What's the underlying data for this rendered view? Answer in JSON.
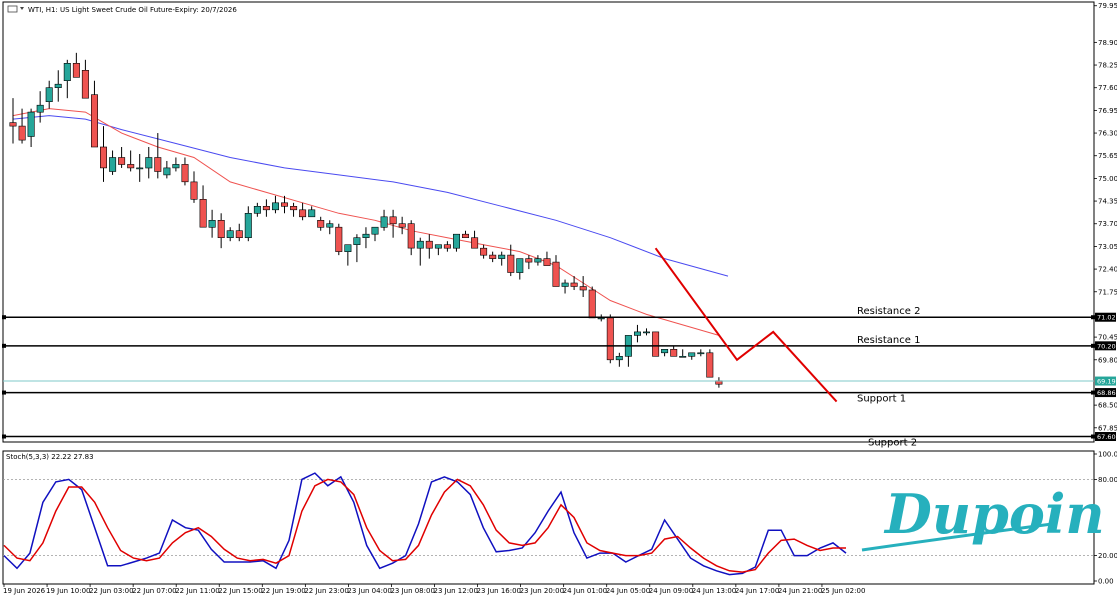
{
  "header": {
    "main_title": "WTI, H1:  US Light Sweet Crude Oil Future-Expiry: 20/7/2026",
    "osc_title": "Stoch(5,3,3) 22.22 27.83"
  },
  "brand": {
    "logo_text": "Dupoin",
    "color": "#26b0bd"
  },
  "colors": {
    "bull": "#26a69a",
    "bear": "#ef5350",
    "ma_fast": "#ef5350",
    "ma_slow": "#4a4af0",
    "trend": "#e00000",
    "stoch_k": "#1010c0",
    "stoch_d": "#e00000",
    "last_price_line": "#7fc8c8"
  },
  "chart_data": [
    {
      "type": "candlestick",
      "price_axis": [
        "79.95",
        "78.90",
        "78.25",
        "77.60",
        "76.95",
        "76.30",
        "75.65",
        "75.00",
        "74.35",
        "73.70",
        "73.05",
        "72.40",
        "71.75",
        "70.45",
        "69.80",
        "68.50",
        "67.85"
      ],
      "ylim": [
        67.5,
        80.0
      ],
      "time_axis": [
        "19 Jun 2026",
        "19 Jun 10:00",
        "22 Jun 03:00",
        "22 Jun 07:00",
        "22 Jun 11:00",
        "22 Jun 15:00",
        "22 Jun 19:00",
        "22 Jun 23:00",
        "23 Jun 04:00",
        "23 Jun 08:00",
        "23 Jun 12:00",
        "23 Jun 16:00",
        "23 Jun 20:00",
        "24 Jun 01:00",
        "24 Jun 05:00",
        "24 Jun 09:00",
        "24 Jun 13:00",
        "24 Jun 17:00",
        "24 Jun 21:00",
        "25 Jun 02:00"
      ],
      "candles": [
        [
          76.6,
          77.3,
          76.0,
          76.5
        ],
        [
          76.5,
          77.0,
          76.0,
          76.1
        ],
        [
          76.2,
          77.0,
          75.9,
          76.9
        ],
        [
          76.9,
          77.5,
          76.6,
          77.1
        ],
        [
          77.2,
          77.8,
          77.0,
          77.6
        ],
        [
          77.6,
          78.1,
          77.2,
          77.7
        ],
        [
          77.8,
          78.4,
          77.3,
          78.3
        ],
        [
          78.3,
          78.6,
          77.9,
          77.9
        ],
        [
          78.1,
          78.4,
          77.4,
          77.3
        ],
        [
          77.4,
          77.8,
          76.0,
          75.9
        ],
        [
          75.9,
          76.5,
          74.9,
          75.3
        ],
        [
          75.2,
          75.8,
          75.1,
          75.6
        ],
        [
          75.6,
          75.9,
          75.3,
          75.4
        ],
        [
          75.4,
          75.8,
          75.2,
          75.3
        ],
        [
          75.3,
          75.7,
          74.9,
          75.3
        ],
        [
          75.3,
          75.9,
          75.0,
          75.6
        ],
        [
          75.6,
          76.3,
          75.0,
          75.2
        ],
        [
          75.1,
          75.5,
          75.0,
          75.3
        ],
        [
          75.3,
          75.6,
          75.2,
          75.4
        ],
        [
          75.4,
          75.6,
          74.8,
          74.9
        ],
        [
          74.9,
          75.2,
          74.3,
          74.4
        ],
        [
          74.4,
          74.8,
          73.6,
          73.6
        ],
        [
          73.6,
          74.1,
          73.3,
          73.8
        ],
        [
          73.8,
          74.0,
          73.0,
          73.3
        ],
        [
          73.3,
          73.6,
          73.2,
          73.5
        ],
        [
          73.5,
          73.7,
          73.2,
          73.3
        ],
        [
          73.3,
          74.2,
          73.2,
          74.0
        ],
        [
          74.0,
          74.3,
          73.9,
          74.2
        ],
        [
          74.2,
          74.4,
          73.9,
          74.1
        ],
        [
          74.1,
          74.5,
          74.0,
          74.3
        ],
        [
          74.3,
          74.5,
          74.0,
          74.2
        ],
        [
          74.2,
          74.3,
          73.9,
          74.1
        ],
        [
          74.1,
          74.3,
          73.8,
          73.9
        ],
        [
          73.9,
          74.2,
          74.0,
          74.1
        ],
        [
          73.8,
          73.9,
          73.5,
          73.6
        ],
        [
          73.6,
          73.8,
          73.4,
          73.7
        ],
        [
          73.6,
          73.7,
          72.8,
          72.9
        ],
        [
          72.9,
          73.1,
          72.5,
          73.1
        ],
        [
          73.1,
          73.4,
          72.6,
          73.3
        ],
        [
          73.3,
          73.6,
          73.0,
          73.4
        ],
        [
          73.4,
          73.6,
          73.2,
          73.6
        ],
        [
          73.6,
          74.1,
          73.5,
          73.9
        ],
        [
          73.9,
          74.1,
          73.3,
          73.7
        ],
        [
          73.7,
          73.9,
          73.4,
          73.6
        ],
        [
          73.7,
          73.8,
          72.8,
          73.0
        ],
        [
          73.0,
          73.3,
          72.5,
          73.2
        ],
        [
          73.2,
          73.4,
          72.7,
          73.0
        ],
        [
          73.0,
          73.1,
          72.8,
          73.1
        ],
        [
          73.1,
          73.2,
          72.9,
          73.0
        ],
        [
          73.0,
          73.4,
          72.9,
          73.4
        ],
        [
          73.4,
          73.5,
          73.3,
          73.3
        ],
        [
          73.3,
          73.5,
          73.0,
          73.0
        ],
        [
          73.0,
          73.1,
          72.7,
          72.8
        ],
        [
          72.8,
          72.9,
          72.6,
          72.7
        ],
        [
          72.7,
          72.9,
          72.5,
          72.8
        ],
        [
          72.8,
          73.1,
          72.2,
          72.3
        ],
        [
          72.3,
          72.6,
          72.1,
          72.7
        ],
        [
          72.7,
          72.8,
          72.4,
          72.6
        ],
        [
          72.6,
          72.8,
          72.5,
          72.7
        ],
        [
          72.7,
          72.9,
          72.6,
          72.5
        ],
        [
          72.6,
          72.8,
          71.9,
          71.9
        ],
        [
          71.9,
          72.1,
          71.7,
          72.0
        ],
        [
          72.0,
          72.2,
          71.8,
          71.9
        ],
        [
          71.9,
          72.2,
          71.6,
          71.8
        ],
        [
          71.8,
          71.9,
          71.0,
          71.0
        ],
        [
          71.0,
          71.1,
          70.9,
          71.0
        ],
        [
          71.0,
          71.1,
          69.7,
          69.8
        ],
        [
          69.8,
          70.0,
          69.6,
          69.9
        ],
        [
          69.9,
          70.5,
          69.6,
          70.5
        ],
        [
          70.5,
          70.8,
          70.3,
          70.6
        ],
        [
          70.6,
          70.7,
          70.5,
          70.6
        ],
        [
          70.6,
          70.6,
          69.9,
          69.9
        ],
        [
          70.0,
          70.1,
          69.9,
          70.1
        ],
        [
          70.1,
          70.2,
          69.9,
          69.9
        ],
        [
          69.9,
          70.1,
          69.9,
          69.9
        ],
        [
          69.9,
          70.0,
          69.8,
          70.0
        ],
        [
          70.0,
          70.1,
          69.9,
          70.0
        ],
        [
          70.0,
          70.1,
          69.3,
          69.3
        ],
        [
          69.2,
          69.3,
          69.0,
          69.1
        ]
      ],
      "ma_fast": [
        [
          0,
          76.8
        ],
        [
          4,
          77.0
        ],
        [
          8,
          76.9
        ],
        [
          12,
          76.3
        ],
        [
          16,
          75.9
        ],
        [
          20,
          75.6
        ],
        [
          24,
          74.9
        ],
        [
          28,
          74.6
        ],
        [
          32,
          74.3
        ],
        [
          36,
          74.0
        ],
        [
          40,
          73.8
        ],
        [
          44,
          73.5
        ],
        [
          48,
          73.3
        ],
        [
          52,
          73.1
        ],
        [
          56,
          72.9
        ],
        [
          60,
          72.5
        ],
        [
          63,
          72.0
        ],
        [
          66,
          71.5
        ],
        [
          70,
          71.1
        ],
        [
          74,
          70.8
        ],
        [
          78,
          70.5
        ]
      ],
      "ma_slow": [
        [
          0,
          76.7
        ],
        [
          4,
          76.8
        ],
        [
          8,
          76.7
        ],
        [
          12,
          76.4
        ],
        [
          18,
          76.0
        ],
        [
          24,
          75.6
        ],
        [
          30,
          75.3
        ],
        [
          36,
          75.1
        ],
        [
          42,
          74.9
        ],
        [
          48,
          74.6
        ],
        [
          54,
          74.2
        ],
        [
          60,
          73.8
        ],
        [
          66,
          73.3
        ],
        [
          72,
          72.7
        ],
        [
          79,
          72.2
        ]
      ],
      "trendline": [
        [
          71,
          73.0
        ],
        [
          80,
          69.8
        ],
        [
          84,
          70.6
        ],
        [
          91,
          68.6
        ]
      ],
      "levels": [
        {
          "label": "Resistance 2",
          "price_tag": "71.02",
          "value": 71.02
        },
        {
          "label": "Resistance 1",
          "price_tag": "70.20",
          "value": 70.2
        },
        {
          "label": "",
          "price_tag": "69.19",
          "value": 69.19
        },
        {
          "label": "Support 1",
          "price_tag": "68.86",
          "value": 68.86
        },
        {
          "label": "Support 2",
          "price_tag": "67.60",
          "value": 67.6
        }
      ]
    },
    {
      "type": "line",
      "name": "Stoch(5,3,3)",
      "ylim": [
        0,
        100
      ],
      "y_ticks": [
        "100.00",
        "80.00",
        "20.00",
        "0.00"
      ],
      "levels": [
        80,
        20
      ],
      "k": [
        20,
        10,
        22,
        62,
        78,
        80,
        72,
        42,
        12,
        12,
        15,
        18,
        22,
        48,
        42,
        40,
        25,
        15,
        15,
        15,
        16,
        10,
        32,
        80,
        85,
        75,
        82,
        62,
        28,
        10,
        14,
        20,
        45,
        78,
        82,
        78,
        68,
        42,
        23,
        24,
        26,
        38,
        55,
        70,
        38,
        18,
        22,
        22,
        15,
        20,
        25,
        48,
        33,
        18,
        12,
        8,
        5,
        6,
        11,
        40,
        40,
        20,
        20,
        26,
        30,
        22
      ],
      "d": [
        28,
        18,
        16,
        30,
        55,
        74,
        74,
        62,
        42,
        24,
        18,
        16,
        18,
        30,
        38,
        42,
        35,
        25,
        18,
        16,
        17,
        14,
        20,
        55,
        75,
        80,
        78,
        68,
        42,
        24,
        16,
        17,
        28,
        52,
        70,
        80,
        75,
        60,
        40,
        30,
        28,
        30,
        42,
        60,
        50,
        30,
        24,
        22,
        20,
        20,
        22,
        33,
        35,
        26,
        18,
        12,
        8,
        7,
        9,
        22,
        32,
        33,
        28,
        24,
        26,
        26
      ]
    }
  ]
}
